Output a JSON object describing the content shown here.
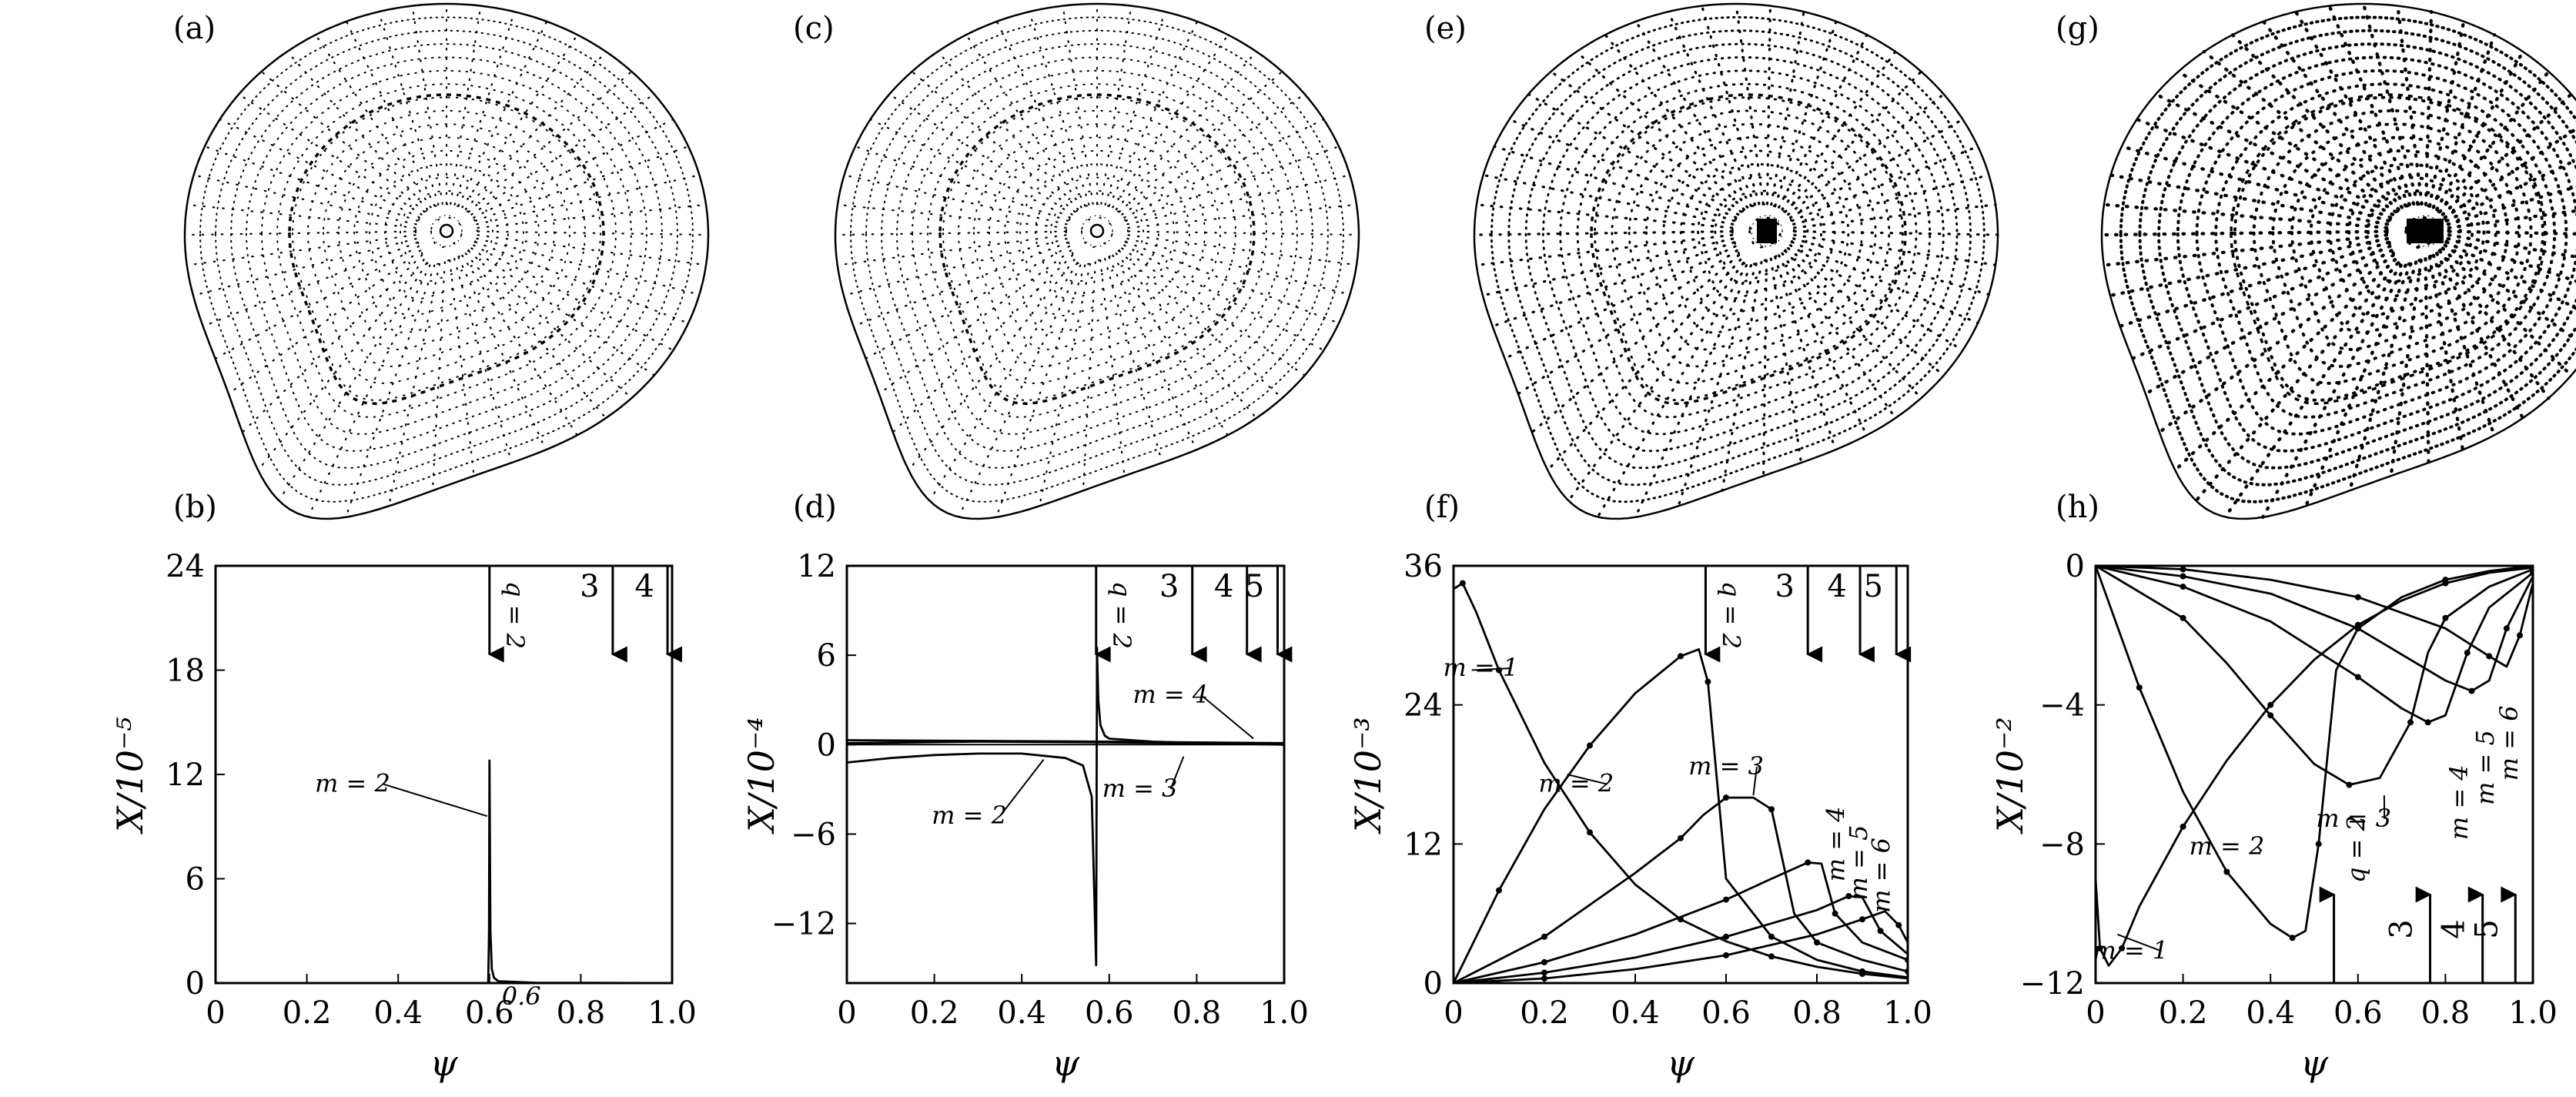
{
  "panel_labels": [
    "(a)",
    "(b)",
    "(c)",
    "(d)",
    "(e)",
    "(f)",
    "(g)",
    "(h)"
  ],
  "flux_plots": [
    {
      "label": "(a)",
      "style": "sparse",
      "inner_contour": true,
      "core_fill": false
    },
    {
      "label": "(c)",
      "style": "sparse",
      "inner_contour": true,
      "core_fill": false
    },
    {
      "label": "(e)",
      "style": "medium",
      "inner_contour": true,
      "core_fill": true
    },
    {
      "label": "(g)",
      "style": "dense",
      "inner_contour": true,
      "core_fill": true
    }
  ],
  "chart_data": [
    {
      "type": "line",
      "panel": "(b)",
      "xlabel": "ψ",
      "ylabel": "X/10⁻⁵",
      "xlim": [
        0,
        1.0
      ],
      "ylim": [
        0,
        24
      ],
      "xticks": [
        "0",
        "0.2",
        "0.4",
        "0.6",
        "0.8",
        "1.0"
      ],
      "xtick_values": [
        0,
        0.2,
        0.4,
        0.6,
        0.8,
        1.0
      ],
      "yticks": [
        "0",
        "6",
        "12",
        "18",
        "24"
      ],
      "ytick_values": [
        0,
        6,
        12,
        18,
        24
      ],
      "inner_label": {
        "text": "0.6",
        "x": 0.61,
        "y": -0.9
      },
      "series": [
        {
          "name": "m = 2",
          "x": [
            0,
            0.5,
            0.56,
            0.585,
            0.593,
            0.597,
            0.599,
            0.6,
            0.602,
            0.605,
            0.61,
            0.62,
            0.7,
            1.0
          ],
          "y": [
            0,
            0,
            -0.05,
            -0.3,
            -0.6,
            -0.4,
            3.0,
            12.8,
            3.0,
            0.8,
            0.3,
            0.1,
            0.02,
            0
          ]
        }
      ],
      "arrows": [
        {
          "label": "q = 2",
          "x": 0.6,
          "rotated": true
        },
        {
          "label": "3",
          "x": 0.87,
          "rotated": false
        },
        {
          "label": "4",
          "x": 0.99,
          "rotated": false
        }
      ],
      "annotations": [
        {
          "text": "m = 2",
          "x": 0.3,
          "y": 11.0,
          "ax": 0.595,
          "ay": 9.6
        }
      ]
    },
    {
      "type": "line",
      "panel": "(d)",
      "xlabel": "ψ",
      "ylabel": "X/10⁻⁴",
      "xlim": [
        0,
        1.0
      ],
      "ylim": [
        -16,
        12
      ],
      "xticks": [
        "0",
        "0.2",
        "0.4",
        "0.6",
        "0.8",
        "1.0"
      ],
      "xtick_values": [
        0,
        0.2,
        0.4,
        0.6,
        0.8,
        1.0
      ],
      "yticks": [
        "−12",
        "−6",
        "0",
        "6",
        "12"
      ],
      "ytick_values": [
        -12,
        -6,
        0,
        6,
        12
      ],
      "series": [
        {
          "name": "m = 2",
          "x": [
            0,
            0.1,
            0.2,
            0.3,
            0.4,
            0.5,
            0.54,
            0.56,
            0.57,
            0.572,
            0.575,
            0.58,
            0.59,
            0.6,
            0.7,
            0.8,
            1.0
          ],
          "y": [
            -1.2,
            -0.9,
            -0.7,
            -0.6,
            -0.6,
            -0.9,
            -1.4,
            -3.5,
            -14.8,
            6.5,
            3.0,
            1.3,
            0.6,
            0.4,
            0.2,
            0.1,
            0
          ]
        },
        {
          "name": "m = 3",
          "x": [
            0,
            0.3,
            0.6,
            0.8,
            1.0
          ],
          "y": [
            0.1,
            0.2,
            0.15,
            0.1,
            0.05
          ]
        },
        {
          "name": "m = 4",
          "x": [
            0,
            0.3,
            0.6,
            0.8,
            1.0
          ],
          "y": [
            0.3,
            0.25,
            0.2,
            0.15,
            0.1
          ]
        }
      ],
      "arrows": [
        {
          "label": "q = 2",
          "x": 0.57,
          "rotated": true
        },
        {
          "label": "3",
          "x": 0.79,
          "rotated": false
        },
        {
          "label": "4",
          "x": 0.915,
          "rotated": false
        },
        {
          "label": "5",
          "x": 0.985,
          "rotated": false
        }
      ],
      "annotations": [
        {
          "text": "m = 2",
          "x": 0.28,
          "y": -5.3,
          "ax": 0.45,
          "ay": -1.0
        },
        {
          "text": "m = 3",
          "x": 0.67,
          "y": -3.5,
          "ax": 0.77,
          "ay": -0.8
        },
        {
          "text": "m = 4",
          "x": 0.74,
          "y": 2.8,
          "ax": 0.93,
          "ay": 0.4
        }
      ]
    },
    {
      "type": "line",
      "panel": "(f)",
      "xlabel": "ψ",
      "ylabel": "X/10⁻³",
      "xlim": [
        0,
        1.0
      ],
      "ylim": [
        0,
        36
      ],
      "xticks": [
        "0",
        "0.2",
        "0.4",
        "0.6",
        "0.8",
        "1.0"
      ],
      "xtick_values": [
        0,
        0.2,
        0.4,
        0.6,
        0.8,
        1.0
      ],
      "yticks": [
        "0",
        "12",
        "24",
        "36"
      ],
      "ytick_values": [
        0,
        12,
        24,
        36
      ],
      "series": [
        {
          "name": "m = 1",
          "x": [
            0,
            0.02,
            0.05,
            0.1,
            0.2,
            0.3,
            0.4,
            0.5,
            0.6,
            0.7,
            0.8,
            0.9,
            1.0
          ],
          "y": [
            34,
            34.5,
            32,
            27,
            19,
            13,
            8.5,
            5.5,
            3.6,
            2.3,
            1.4,
            0.8,
            0.4
          ]
        },
        {
          "name": "m = 2",
          "x": [
            0,
            0.1,
            0.2,
            0.3,
            0.4,
            0.5,
            0.54,
            0.56,
            0.6,
            0.7,
            0.8,
            0.9,
            1.0
          ],
          "y": [
            0,
            8,
            15,
            20.5,
            25,
            28.2,
            28.8,
            26,
            9,
            4,
            2,
            1,
            0.5
          ]
        },
        {
          "name": "m = 3",
          "x": [
            0,
            0.2,
            0.4,
            0.5,
            0.55,
            0.6,
            0.66,
            0.7,
            0.75,
            0.8,
            0.9,
            1.0
          ],
          "y": [
            0,
            4,
            9.5,
            12.5,
            14.5,
            16,
            16,
            15,
            6,
            3.5,
            2,
            1
          ]
        },
        {
          "name": "m = 4",
          "x": [
            0,
            0.2,
            0.4,
            0.6,
            0.7,
            0.78,
            0.81,
            0.84,
            0.9,
            1.0
          ],
          "y": [
            0,
            1.8,
            4.2,
            7.2,
            9,
            10.4,
            10.3,
            6,
            3.5,
            2
          ]
        },
        {
          "name": "m = 5",
          "x": [
            0,
            0.2,
            0.4,
            0.6,
            0.8,
            0.87,
            0.9,
            0.94,
            1.0
          ],
          "y": [
            0,
            0.9,
            2.2,
            4,
            6.3,
            7.5,
            7.4,
            4.5,
            2.5
          ]
        },
        {
          "name": "m = 6",
          "x": [
            0,
            0.2,
            0.4,
            0.6,
            0.8,
            0.9,
            0.95,
            0.98,
            1.0
          ],
          "y": [
            0,
            0.4,
            1.2,
            2.4,
            4.2,
            5.5,
            6.2,
            5,
            3.5
          ]
        }
      ],
      "arrows": [
        {
          "label": "q = 2",
          "x": 0.555,
          "rotated": true
        },
        {
          "label": "3",
          "x": 0.78,
          "rotated": false
        },
        {
          "label": "4",
          "x": 0.895,
          "rotated": false
        },
        {
          "label": "5",
          "x": 0.975,
          "rotated": false
        }
      ],
      "annotations": [
        {
          "text": "m = 1",
          "x": 0.06,
          "y": 26.5,
          "ax": 0.04,
          "ay": 27.0
        },
        {
          "text": "m = 2",
          "x": 0.27,
          "y": 16.5,
          "ax": 0.25,
          "ay": 18.0
        },
        {
          "text": "m = 3",
          "x": 0.6,
          "y": 18.0,
          "ax": 0.66,
          "ay": 16.2
        }
      ],
      "rotated_annotations": [
        {
          "text": "m = 4",
          "x": 0.86,
          "y": 12.0
        },
        {
          "text": "m = 5",
          "x": 0.91,
          "y": 10.4
        },
        {
          "text": "m = 6",
          "x": 0.96,
          "y": 9.3
        }
      ]
    },
    {
      "type": "line",
      "panel": "(h)",
      "xlabel": "ψ",
      "ylabel": "X/10⁻²",
      "xlim": [
        0,
        1.0
      ],
      "ylim": [
        -12,
        0
      ],
      "xticks": [
        "0",
        "0.2",
        "0.4",
        "0.6",
        "0.8",
        "1.0"
      ],
      "xtick_values": [
        0,
        0.2,
        0.4,
        0.6,
        0.8,
        1.0
      ],
      "yticks": [
        "−12",
        "−8",
        "−4",
        "0"
      ],
      "ytick_values": [
        -12,
        -8,
        -4,
        0
      ],
      "series": [
        {
          "name": "m = 1",
          "x": [
            0,
            0.01,
            0.03,
            0.06,
            0.1,
            0.2,
            0.3,
            0.4,
            0.5,
            0.6,
            0.7,
            0.8,
            0.9,
            1.0
          ],
          "y": [
            -9,
            -11,
            -11.5,
            -11,
            -9.8,
            -7.5,
            -5.6,
            -4,
            -2.7,
            -1.7,
            -1,
            -0.5,
            -0.2,
            -0.05
          ]
        },
        {
          "name": "m = 2",
          "x": [
            0,
            0.1,
            0.2,
            0.3,
            0.4,
            0.45,
            0.48,
            0.51,
            0.55,
            0.6,
            0.7,
            0.8,
            0.9,
            1.0
          ],
          "y": [
            0,
            -3.5,
            -6.5,
            -8.8,
            -10.3,
            -10.7,
            -10.5,
            -8,
            -3,
            -1.8,
            -0.9,
            -0.4,
            -0.15,
            0
          ]
        },
        {
          "name": "m = 3",
          "x": [
            0,
            0.2,
            0.3,
            0.4,
            0.5,
            0.58,
            0.65,
            0.72,
            0.76,
            0.8,
            0.9,
            1.0
          ],
          "y": [
            0,
            -1.5,
            -2.8,
            -4.3,
            -5.7,
            -6.3,
            -6.1,
            -4.5,
            -2.5,
            -1.5,
            -0.6,
            -0.1
          ]
        },
        {
          "name": "m = 4",
          "x": [
            0,
            0.2,
            0.4,
            0.6,
            0.7,
            0.76,
            0.8,
            0.85,
            0.9,
            1.0
          ],
          "y": [
            0,
            -0.6,
            -1.6,
            -3.2,
            -4.1,
            -4.5,
            -4.3,
            -2.5,
            -1.2,
            -0.2
          ]
        },
        {
          "name": "m = 5",
          "x": [
            0,
            0.2,
            0.4,
            0.6,
            0.8,
            0.86,
            0.9,
            0.94,
            1.0
          ],
          "y": [
            0,
            -0.3,
            -0.8,
            -1.8,
            -3.3,
            -3.6,
            -3.3,
            -1.8,
            -0.3
          ]
        },
        {
          "name": "m = 6",
          "x": [
            0,
            0.2,
            0.4,
            0.6,
            0.8,
            0.9,
            0.94,
            0.97,
            1.0
          ],
          "y": [
            0,
            -0.1,
            -0.4,
            -0.9,
            -1.8,
            -2.6,
            -2.9,
            -2,
            -0.5
          ]
        }
      ],
      "arrows": [
        {
          "label": "q = 2",
          "x": 0.545,
          "rotated": true,
          "upward": true
        },
        {
          "label": "3",
          "x": 0.765,
          "rotated": false,
          "upward": true
        },
        {
          "label": "4",
          "x": 0.885,
          "rotated": false,
          "upward": true
        },
        {
          "label": "5",
          "x": 0.96,
          "rotated": false,
          "upward": true
        }
      ],
      "annotations": [
        {
          "text": "m = 1",
          "x": 0.08,
          "y": -11.3,
          "ax": 0.05,
          "ay": -10.6
        },
        {
          "text": "m = 2",
          "x": 0.3,
          "y": -8.3,
          "ax": 0.38,
          "ay": -8.2
        },
        {
          "text": "m = 3",
          "x": 0.59,
          "y": -7.5,
          "ax": 0.66,
          "ay": -6.6
        }
      ],
      "rotated_annotations": [
        {
          "text": "m = 4",
          "x": 0.85,
          "y": -6.8
        },
        {
          "text": "m = 5",
          "x": 0.91,
          "y": -5.8
        },
        {
          "text": "m = 6",
          "x": 0.965,
          "y": -5.1
        }
      ]
    }
  ]
}
